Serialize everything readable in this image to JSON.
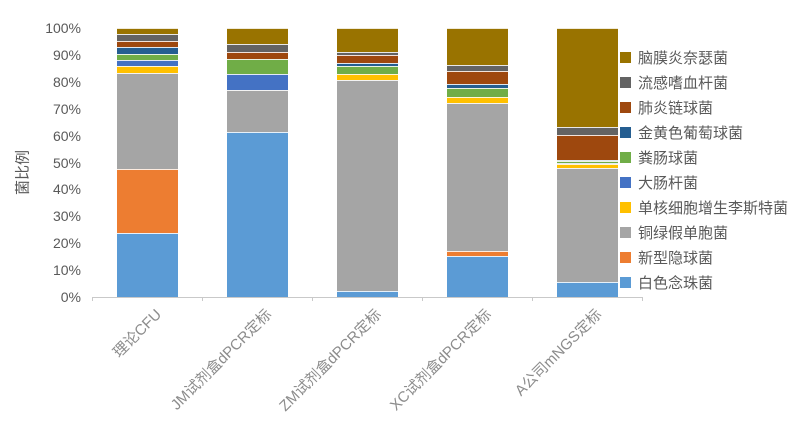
{
  "figure": {
    "background": "#ffffff",
    "axis_line_color": "#C9C9C9",
    "y_tick_color": "#595959",
    "x_label_color": "#8C8C8C",
    "legend_text_color": "#595959"
  },
  "chart_data": {
    "type": "bar",
    "variant": "stacked-100-percent",
    "title": "",
    "xlabel": "",
    "ylabel": "菌比例",
    "ylim": [
      0,
      100
    ],
    "yticks": [
      "0%",
      "10%",
      "20%",
      "30%",
      "40%",
      "50%",
      "60%",
      "70%",
      "80%",
      "90%",
      "100%"
    ],
    "grid": false,
    "legend_position": "right",
    "legend_order": "reversed",
    "x_label_rotation_deg": -45,
    "categories": [
      "理论CFU",
      "JM试剂盒dPCR定标",
      "ZM试剂盒dPCR定标",
      "XC试剂盒dPCR定标",
      "A公司mNGS定标"
    ],
    "unit": "percent",
    "series": [
      {
        "name": "白色念珠菌",
        "color": "#5B9BD5",
        "values": [
          23.8,
          61.3,
          2.4,
          15.4,
          5.5
        ]
      },
      {
        "name": "新型隐球菌",
        "color": "#ED7D31",
        "values": [
          23.8,
          0.0,
          0.0,
          1.7,
          0.0
        ]
      },
      {
        "name": "铜绿假单胞菌",
        "color": "#A5A5A5",
        "values": [
          35.7,
          15.7,
          78.1,
          55.1,
          42.5
        ]
      },
      {
        "name": "单核细胞增生李斯特菌",
        "color": "#FFC000",
        "values": [
          2.4,
          0.0,
          2.3,
          2.1,
          1.5
        ]
      },
      {
        "name": "大肠杆菌",
        "color": "#4472C4",
        "values": [
          2.4,
          6.0,
          0.0,
          0.0,
          0.5
        ]
      },
      {
        "name": "粪肠球菌",
        "color": "#70AD47",
        "values": [
          2.4,
          5.3,
          3.0,
          3.4,
          0.5
        ]
      },
      {
        "name": "金黄色葡萄球菌",
        "color": "#255E91",
        "values": [
          2.4,
          0.0,
          1.1,
          1.5,
          0.4
        ]
      },
      {
        "name": "肺炎链球菌",
        "color": "#9E480E",
        "values": [
          2.4,
          2.9,
          2.9,
          4.8,
          9.4
        ]
      },
      {
        "name": "流感嗜血杆菌",
        "color": "#636363",
        "values": [
          2.4,
          2.9,
          1.2,
          2.2,
          2.8
        ]
      },
      {
        "name": "脑膜炎奈瑟菌",
        "color": "#997300",
        "values": [
          2.3,
          5.9,
          9.0,
          13.8,
          36.9
        ]
      }
    ]
  }
}
